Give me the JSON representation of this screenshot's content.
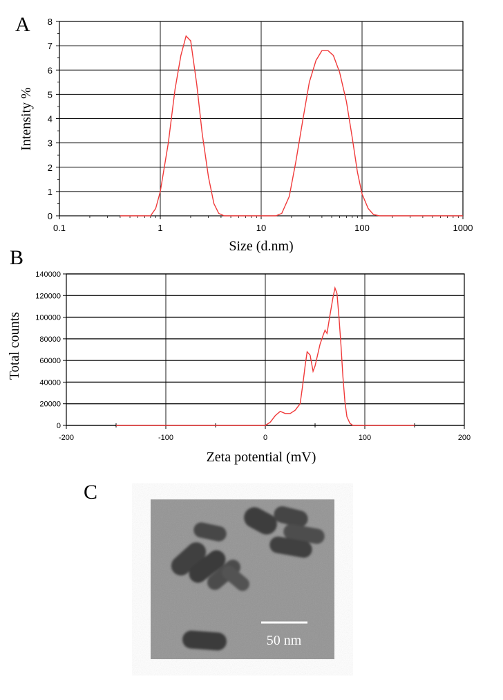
{
  "panels": {
    "a": "A",
    "b": "B",
    "c": "C"
  },
  "chart_data": [
    {
      "type": "line",
      "panel": "A",
      "xlabel": "Size (d.nm)",
      "ylabel": "Intensity %",
      "xscale": "log",
      "xlim": [
        0.1,
        1000
      ],
      "ylim": [
        0,
        8
      ],
      "xticks": [
        "0.1",
        "1",
        "10",
        "100",
        "1000"
      ],
      "yticks": [
        "0",
        "1",
        "2",
        "3",
        "4",
        "5",
        "6",
        "7",
        "8"
      ],
      "grid": true,
      "line_color": "#f03a3a",
      "series": [
        {
          "x": [
            0.4,
            0.5,
            0.6,
            0.7,
            0.8,
            0.9,
            1.0,
            1.2,
            1.4,
            1.6,
            1.8,
            2.0,
            2.3,
            2.6,
            3.0,
            3.4,
            3.8,
            4.3,
            5,
            6,
            8,
            10,
            12,
            14,
            16,
            19,
            22,
            26,
            30,
            35,
            40,
            46,
            52,
            60,
            70,
            80,
            90,
            100,
            115,
            130,
            150,
            200,
            300,
            500,
            700,
            1000
          ],
          "y": [
            0,
            0,
            0,
            0,
            0,
            0.3,
            1.0,
            3.0,
            5.2,
            6.6,
            7.4,
            7.2,
            5.4,
            3.4,
            1.6,
            0.5,
            0.1,
            0,
            0,
            0,
            0,
            0,
            0,
            0,
            0.1,
            0.8,
            2.2,
            4.0,
            5.5,
            6.4,
            6.8,
            6.8,
            6.6,
            5.9,
            4.7,
            3.2,
            1.8,
            0.9,
            0.3,
            0.05,
            0,
            0,
            0,
            0,
            0,
            0
          ]
        }
      ]
    },
    {
      "type": "line",
      "panel": "B",
      "xlabel": "Zeta potential (mV)",
      "ylabel": "Total counts",
      "xlim": [
        -200,
        200
      ],
      "ylim": [
        0,
        140000
      ],
      "xticks": [
        "-200",
        "-100",
        "0",
        "100",
        "200"
      ],
      "yticks": [
        "0",
        "20000",
        "40000",
        "60000",
        "80000",
        "100000",
        "120000",
        "140000"
      ],
      "grid": true,
      "line_color": "#f03a3a",
      "series": [
        {
          "x": [
            -150,
            -100,
            -50,
            -20,
            0,
            5,
            10,
            15,
            20,
            25,
            30,
            35,
            38,
            40,
            42,
            45,
            48,
            50,
            55,
            58,
            60,
            62,
            65,
            68,
            70,
            72,
            74,
            76,
            78,
            80,
            82,
            85,
            88,
            90,
            95,
            100,
            150
          ],
          "y": [
            0,
            0,
            0,
            0,
            0,
            3000,
            9000,
            13000,
            11000,
            11000,
            14000,
            20000,
            40000,
            55000,
            68000,
            65000,
            50000,
            55000,
            75000,
            83000,
            88000,
            85000,
            102000,
            118000,
            127000,
            122000,
            100000,
            75000,
            45000,
            22000,
            8000,
            2000,
            0,
            0,
            0,
            0,
            0
          ]
        }
      ]
    }
  ],
  "micrograph": {
    "scale_bar_label": "50 nm"
  }
}
